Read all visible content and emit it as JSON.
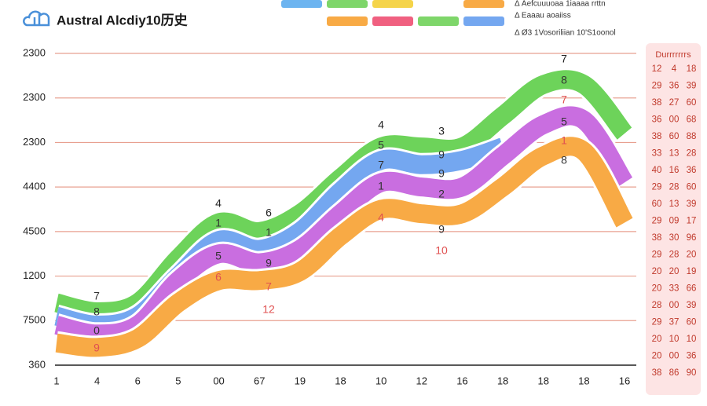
{
  "chart_data": {
    "type": "line",
    "title": "Austral Alcdiy10历史",
    "categories": [
      "1",
      "4",
      "6",
      "5",
      "00",
      "67",
      "19",
      "18",
      "10",
      "12",
      "16",
      "18",
      "18",
      "18",
      "16"
    ],
    "series": [
      {
        "color": "#6dd35a",
        "values": [
          1.4,
          1.2,
          1.4,
          2.4,
          3.2,
          3.0,
          3.4,
          4.2,
          4.9,
          4.9,
          4.9,
          5.6,
          6.3,
          6.3,
          5.2
        ]
      },
      {
        "color": "#74a7f0",
        "values": [
          1.1,
          0.9,
          1.1,
          2.0,
          2.8,
          2.6,
          3.0,
          3.9,
          4.6,
          4.5,
          4.6,
          4.9,
          null,
          null,
          null
        ]
      },
      {
        "color": "#c96ee0",
        "values": [
          0.9,
          0.7,
          0.9,
          1.9,
          2.5,
          2.3,
          2.6,
          3.4,
          4.1,
          4.0,
          4.0,
          4.7,
          5.4,
          5.5,
          4.1
        ]
      },
      {
        "color": "#f8aa45",
        "values": [
          0.5,
          0.4,
          0.6,
          1.4,
          1.9,
          1.9,
          2.1,
          2.9,
          3.5,
          3.4,
          3.4,
          4.0,
          4.7,
          4.8,
          3.2
        ]
      }
    ],
    "ylim": [
      0,
      7
    ],
    "yticks": [
      {
        "value": 0,
        "label": "360"
      },
      {
        "value": 1,
        "label": "7500"
      },
      {
        "value": 2,
        "label": "1200"
      },
      {
        "value": 3,
        "label": "4500"
      },
      {
        "value": 4,
        "label": "4400"
      },
      {
        "value": 5,
        "label": "2300"
      },
      {
        "value": 6,
        "label": "2300"
      },
      {
        "value": 7,
        "label": "2300"
      }
    ],
    "grid": true,
    "legend_notes": [
      "Δ Aefcuuuoaa 1iaaaa rrttn",
      "Δ Eaaau aoaiiss",
      "Δ Ø3 1Vosoriliian 10'S1oonol"
    ],
    "annotations": [
      {
        "text": "7",
        "color": "#333"
      },
      {
        "text": "8",
        "color": "#333"
      },
      {
        "text": "0",
        "color": "#333"
      },
      {
        "text": "9",
        "color": "#e05050"
      },
      {
        "text": "4",
        "color": "#222"
      },
      {
        "text": "1",
        "color": "#333"
      },
      {
        "text": "5",
        "color": "#333"
      },
      {
        "text": "6",
        "color": "#e05050"
      },
      {
        "text": "6",
        "color": "#222"
      },
      {
        "text": "1",
        "color": "#333"
      },
      {
        "text": "9",
        "color": "#333"
      },
      {
        "text": "7",
        "color": "#e05050"
      },
      {
        "text": "12",
        "color": "#e05050"
      },
      {
        "text": "4",
        "color": "#222"
      },
      {
        "text": "5",
        "color": "#333"
      },
      {
        "text": "7",
        "color": "#333"
      },
      {
        "text": "1",
        "color": "#333"
      },
      {
        "text": "4",
        "color": "#e05050"
      },
      {
        "text": "3",
        "color": "#222"
      },
      {
        "text": "9",
        "color": "#333"
      },
      {
        "text": "9",
        "color": "#333"
      },
      {
        "text": "2",
        "color": "#333"
      },
      {
        "text": "9",
        "color": "#333"
      },
      {
        "text": "10",
        "color": "#e05050"
      },
      {
        "text": "7",
        "color": "#222"
      },
      {
        "text": "8",
        "color": "#333"
      },
      {
        "text": "7",
        "color": "#e05050"
      },
      {
        "text": "5",
        "color": "#333"
      },
      {
        "text": "1",
        "color": "#e05050"
      },
      {
        "text": "8",
        "color": "#333"
      }
    ]
  },
  "table": {
    "header": "Durrrrrrrs",
    "rows": [
      [
        "12",
        "4",
        "18"
      ],
      [
        "29",
        "36",
        "39"
      ],
      [
        "38",
        "27",
        "60"
      ],
      [
        "36",
        "00",
        "68"
      ],
      [
        "38",
        "60",
        "88"
      ],
      [
        "33",
        "13",
        "28"
      ],
      [
        "40",
        "16",
        "36"
      ],
      [
        "29",
        "28",
        "60"
      ],
      [
        "60",
        "13",
        "39"
      ],
      [
        "29",
        "09",
        "17"
      ],
      [
        "38",
        "30",
        "96"
      ],
      [
        "29",
        "28",
        "20"
      ],
      [
        "20",
        "20",
        "19"
      ],
      [
        "20",
        "33",
        "66"
      ],
      [
        "28",
        "00",
        "39"
      ],
      [
        "29",
        "37",
        "60"
      ],
      [
        "20",
        "10",
        "10"
      ],
      [
        "20",
        "00",
        "36"
      ],
      [
        "38",
        "86",
        "90"
      ]
    ]
  }
}
